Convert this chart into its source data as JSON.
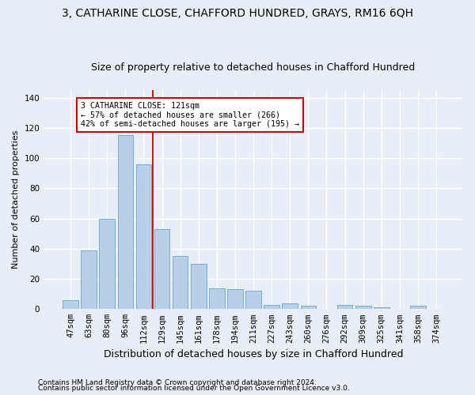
{
  "title_line1": "3, CATHARINE CLOSE, CHAFFORD HUNDRED, GRAYS, RM16 6QH",
  "title_line2": "Size of property relative to detached houses in Chafford Hundred",
  "xlabel": "Distribution of detached houses by size in Chafford Hundred",
  "ylabel": "Number of detached properties",
  "footnote1": "Contains HM Land Registry data © Crown copyright and database right 2024.",
  "footnote2": "Contains public sector information licensed under the Open Government Licence v3.0.",
  "bar_labels": [
    "47sqm",
    "63sqm",
    "80sqm",
    "96sqm",
    "112sqm",
    "129sqm",
    "145sqm",
    "161sqm",
    "178sqm",
    "194sqm",
    "211sqm",
    "227sqm",
    "243sqm",
    "260sqm",
    "276sqm",
    "292sqm",
    "309sqm",
    "325sqm",
    "341sqm",
    "358sqm",
    "374sqm"
  ],
  "bar_values": [
    6,
    39,
    60,
    115,
    96,
    53,
    35,
    30,
    14,
    13,
    12,
    3,
    4,
    2,
    0,
    3,
    2,
    1,
    0,
    2,
    0
  ],
  "bar_color": "#b8cfe8",
  "bar_edge_color": "#7aaad0",
  "vline_x": 4.5,
  "vline_color": "#cc0000",
  "annotation_text": "3 CATHARINE CLOSE: 121sqm\n← 57% of detached houses are smaller (266)\n42% of semi-detached houses are larger (195) →",
  "annotation_box_color": "#ffffff",
  "annotation_box_edge": "#cc0000",
  "ylim": [
    0,
    145
  ],
  "yticks": [
    0,
    20,
    40,
    60,
    80,
    100,
    120,
    140
  ],
  "bg_color": "#e8eef8",
  "grid_color": "#ffffff",
  "title_fontsize": 10,
  "subtitle_fontsize": 9,
  "xlabel_fontsize": 9,
  "ylabel_fontsize": 8,
  "tick_fontsize": 7.5,
  "footnote_fontsize": 6.5
}
